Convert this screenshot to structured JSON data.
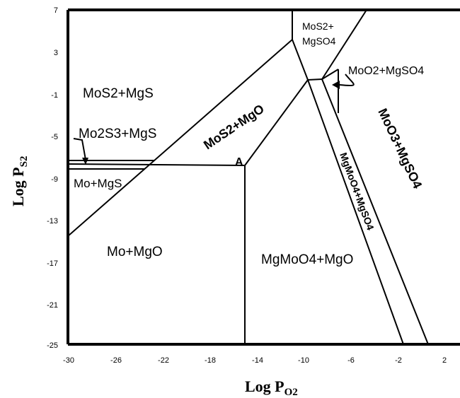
{
  "axes": {
    "x_title": "Log P",
    "x_sub": "O2",
    "y_title": "Log P",
    "y_sub": "S2",
    "x_ticks": [
      "-30",
      "-26",
      "-22",
      "-18",
      "-14",
      "-10",
      "-6",
      "-2",
      "2"
    ],
    "y_ticks": [
      "7",
      "3",
      "-1",
      "-5",
      "-9",
      "-13",
      "-17",
      "-21",
      "-25"
    ]
  },
  "regions": {
    "mos2_mgs": "MoS2+MgS",
    "mo2s3_mgs": "Mo2S3+MgS",
    "mo_mgs": "Mo+MgS",
    "mo_mgo": "Mo+MgO",
    "mos2_mgo": "MoS2+MgO",
    "mos2_mgso4_line1": "MoS2+",
    "mos2_mgso4_line2": "MgSO4",
    "moo2_mgso4": "MoO2+MgSO4",
    "moo3_mgso4": "MoO3+MgSO4",
    "mgmoo4_mgso4": "MgMoO4+MgSO4",
    "mgmoo4_mgo": "MgMoO4+MgO",
    "point_a": "A"
  }
}
